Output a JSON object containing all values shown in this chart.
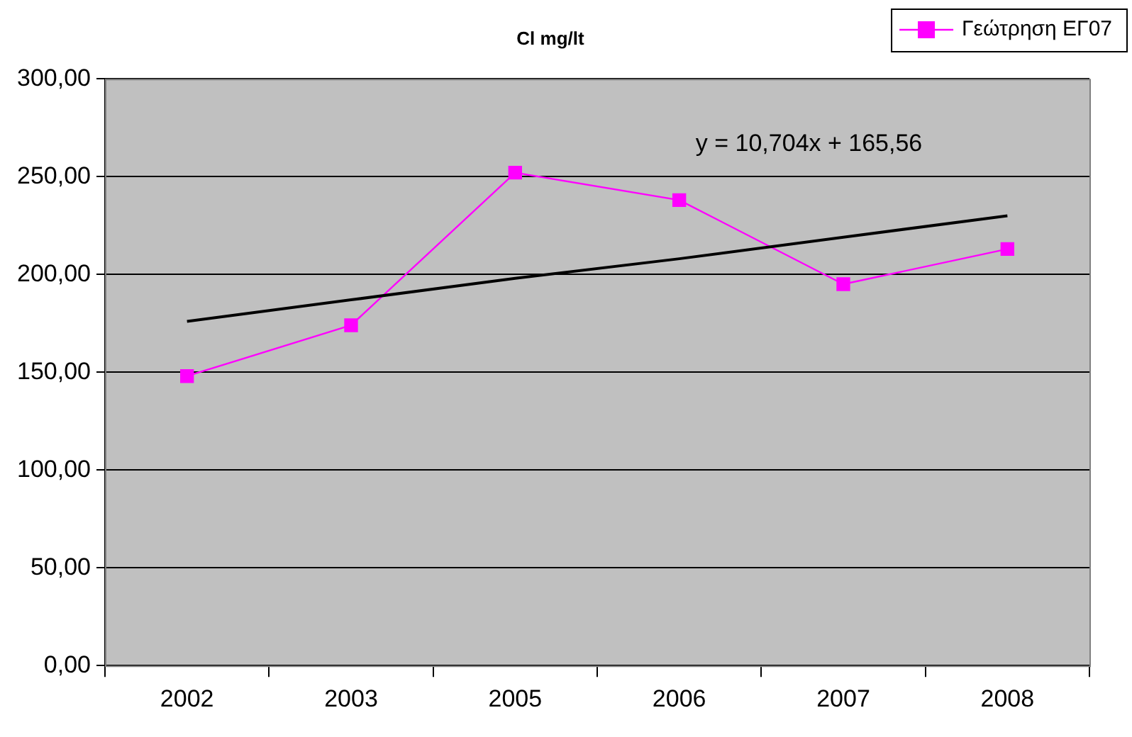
{
  "chart_data": {
    "type": "line",
    "title": "Cl mg/lt",
    "categories": [
      "2002",
      "2003",
      "2005",
      "2006",
      "2007",
      "2008"
    ],
    "series": [
      {
        "name": "Γεώτρηση ΕΓ07",
        "color": "#ff00ff",
        "values": [
          148,
          174,
          252,
          238,
          195,
          213
        ],
        "marker": "square"
      },
      {
        "type": "line",
        "color": "#000000",
        "values": [
          176,
          187,
          198,
          208,
          219,
          230
        ],
        "marker": "none"
      }
    ],
    "ylim": [
      0,
      300
    ],
    "yticks": [
      {
        "value": 0,
        "label": "0,00"
      },
      {
        "value": 50,
        "label": "50,00"
      },
      {
        "value": 100,
        "label": "100,00"
      },
      {
        "value": 150,
        "label": "150,00"
      },
      {
        "value": 200,
        "label": "200,00"
      },
      {
        "value": 250,
        "label": "250,00"
      },
      {
        "value": 300,
        "label": "300,00"
      }
    ],
    "grid": "y",
    "legend": "top right",
    "annotations": [
      "y = 10,704x + 165,56"
    ]
  }
}
